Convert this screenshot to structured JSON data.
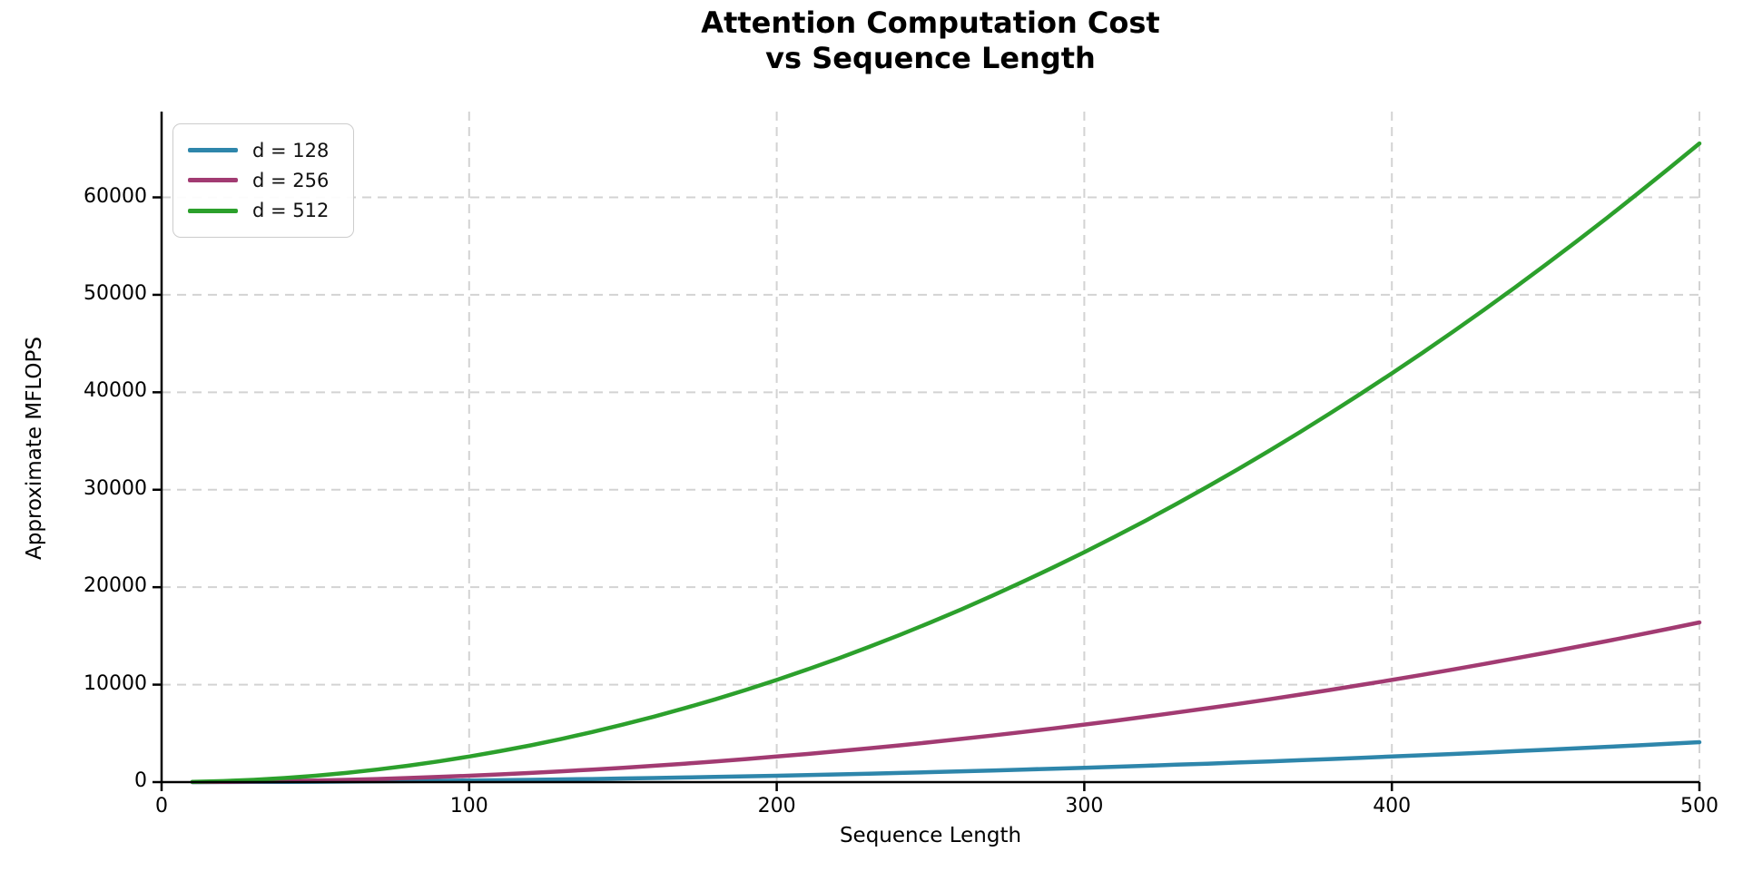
{
  "chart_data": {
    "type": "line",
    "title": "Attention Computation Cost vs Sequence Length",
    "title_lines": [
      "Attention Computation Cost",
      "vs Sequence Length"
    ],
    "xlabel": "Sequence Length",
    "ylabel": "Approximate MFLOPS",
    "xlim": [
      0,
      500
    ],
    "ylim": [
      0,
      68800
    ],
    "xticks": [
      0,
      100,
      200,
      300,
      400,
      500
    ],
    "yticks": [
      0,
      10000,
      20000,
      30000,
      40000,
      50000,
      60000
    ],
    "grid": "dashed",
    "grid_color": "#d3d3d3",
    "axis_color": "#000000",
    "background_color": "#ffffff",
    "legend_position": "upper-left",
    "x": [
      10,
      20,
      30,
      40,
      50,
      60,
      70,
      80,
      90,
      100,
      110,
      120,
      130,
      140,
      150,
      160,
      170,
      180,
      190,
      200,
      210,
      220,
      230,
      240,
      250,
      260,
      270,
      280,
      290,
      300,
      310,
      320,
      330,
      340,
      350,
      360,
      370,
      380,
      390,
      400,
      410,
      420,
      430,
      440,
      450,
      460,
      470,
      480,
      490,
      500
    ],
    "series": [
      {
        "name": "d = 128",
        "color": "#2E86AB",
        "values": [
          1.6,
          6.6,
          14.7,
          26.2,
          41.0,
          59.0,
          80.3,
          104.9,
          132.7,
          163.8,
          198.2,
          235.9,
          276.9,
          321.1,
          368.6,
          419.4,
          473.5,
          530.8,
          591.5,
          655.4,
          722.5,
          793.0,
          866.7,
          943.7,
          1024.0,
          1107.6,
          1194.4,
          1284.5,
          1377.9,
          1474.6,
          1574.5,
          1677.7,
          1784.2,
          1894.0,
          2007.0,
          2123.4,
          2243.0,
          2365.8,
          2492.0,
          2621.4,
          2754.2,
          2890.1,
          3029.4,
          3171.9,
          3317.8,
          3466.9,
          3619.2,
          3774.9,
          3933.8,
          4096.0
        ]
      },
      {
        "name": "d = 256",
        "color": "#A23B72",
        "values": [
          6.6,
          26.2,
          59.0,
          104.9,
          163.8,
          235.9,
          321.1,
          419.4,
          530.8,
          655.4,
          793.0,
          943.7,
          1107.6,
          1284.5,
          1474.6,
          1677.7,
          1894.0,
          2123.4,
          2365.8,
          2621.4,
          2890.1,
          3172.0,
          3466.9,
          3774.9,
          4096.0,
          4430.2,
          4777.6,
          5138.0,
          5511.6,
          5898.2,
          6298.0,
          6710.9,
          7136.9,
          7576.0,
          8028.2,
          8493.5,
          8971.9,
          9463.4,
          9968.0,
          10485.8,
          11016.6,
          11560.6,
          12117.6,
          12687.8,
          13271.0,
          13867.4,
          14476.9,
          15099.5,
          15735.2,
          16384.0
        ]
      },
      {
        "name": "d = 512",
        "color": "#2CA02C",
        "values": [
          26.2,
          104.9,
          235.9,
          419.4,
          655.4,
          943.7,
          1284.5,
          1677.7,
          2123.4,
          2621.4,
          3171.9,
          3774.9,
          4430.2,
          5138.0,
          5898.2,
          6710.9,
          7576.0,
          8493.5,
          9463.4,
          10485.8,
          11560.6,
          12687.8,
          13867.4,
          15099.5,
          16384.0,
          17720.9,
          19110.3,
          20552.1,
          22046.3,
          23593.0,
          25192.0,
          26843.5,
          28547.5,
          30303.8,
          32112.6,
          33973.9,
          35887.5,
          37853.6,
          39872.1,
          41943.0,
          44066.4,
          46242.2,
          48470.4,
          50751.1,
          53084.2,
          55469.7,
          57907.6,
          60397.9,
          62940.8,
          65536.0
        ]
      }
    ]
  }
}
